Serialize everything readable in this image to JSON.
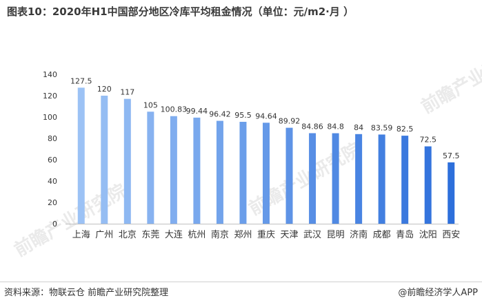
{
  "chart_data": {
    "type": "bar",
    "title": "图表10：2020年H1中国部分地区冷库平均租金情况（单位：元/m2·月 ）",
    "xlabel": "",
    "ylabel": "",
    "ylim": [
      0,
      140
    ],
    "y_ticks": [
      "0",
      "20",
      "40",
      "60",
      "80",
      "100",
      "120",
      "140"
    ],
    "grid": false,
    "categories": [
      "上海",
      "广州",
      "北京",
      "东莞",
      "大连",
      "杭州",
      "南京",
      "郑州",
      "重庆",
      "天津",
      "武汉",
      "昆明",
      "济南",
      "成都",
      "青岛",
      "沈阳",
      "西安"
    ],
    "values": [
      127.5,
      120,
      117,
      105,
      100.83,
      99.44,
      96.42,
      95.5,
      94.64,
      89.92,
      84.86,
      84.8,
      84,
      83.59,
      82.5,
      72.5,
      57.5
    ],
    "value_labels": [
      "127.5",
      "120",
      "117",
      "105",
      "100.83",
      "99.44",
      "96.42",
      "95.5",
      "94.64",
      "89.92",
      "84.86",
      "84.8",
      "84",
      "83.59",
      "82.5",
      "72.5",
      "57.5"
    ],
    "colors": {
      "bar_start": "#9cc2f5",
      "bar_end": "#2d6fdb",
      "axis": "#555555",
      "text": "#333333"
    }
  },
  "footer": {
    "source": "资料来源：物联云仓 前瞻产业研究院整理",
    "brand": "@前瞻经济学人APP"
  },
  "watermark": {
    "text": "前瞻产业研究院"
  }
}
